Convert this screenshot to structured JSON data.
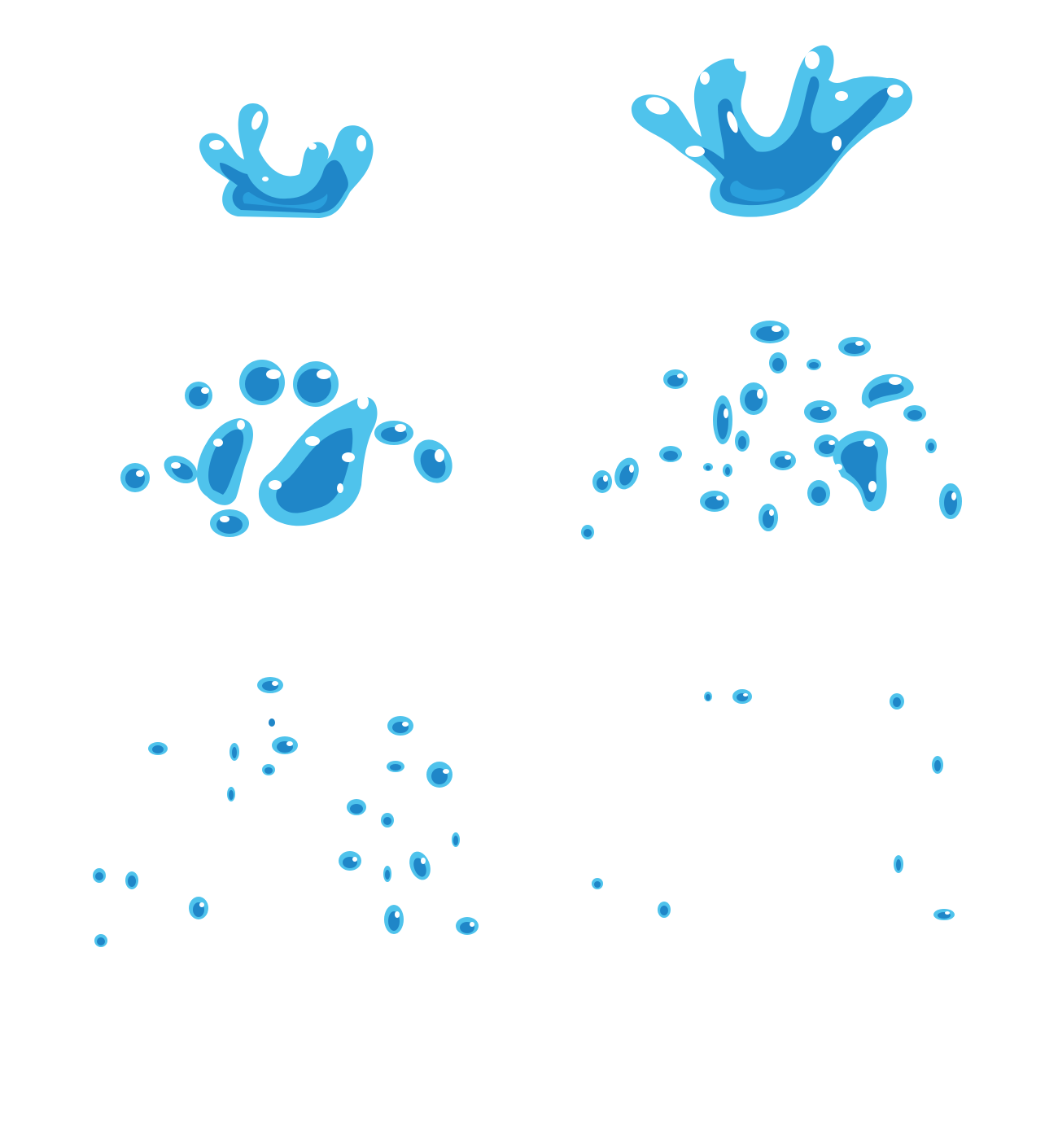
{
  "sprite_sheet": {
    "subject": "water-splash-animation",
    "frame_count": 6,
    "colors": {
      "background": "#ffffff",
      "outline": "#4fc3ec",
      "body": "#1f86c8",
      "mid": "#2a9fdc",
      "highlight": "#ffffff"
    },
    "frames": [
      {
        "stage": "crown-small"
      },
      {
        "stage": "crown-large"
      },
      {
        "stage": "breaking-apart"
      },
      {
        "stage": "droplets-scattered"
      },
      {
        "stage": "droplets-sparse"
      },
      {
        "stage": "droplets-few"
      }
    ]
  }
}
